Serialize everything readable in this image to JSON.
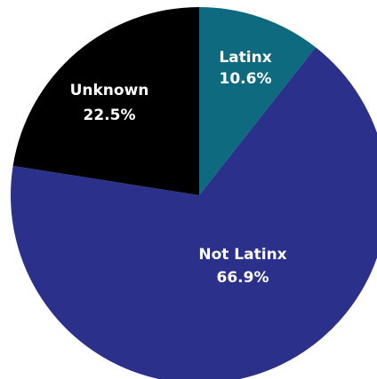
{
  "chart_data": {
    "type": "pie",
    "title": "",
    "start_angle_deg": 0,
    "direction": "clockwise",
    "slices": [
      {
        "label": "Latinx",
        "value_label": "10.6%",
        "value": 10.6,
        "color": "#0e6a7f"
      },
      {
        "label": "Not Latinx",
        "value_label": "66.9%",
        "value": 66.9,
        "color": "#2b318a"
      },
      {
        "label": "Unknown",
        "value_label": "22.5%",
        "value": 22.5,
        "color": "#000000"
      }
    ]
  }
}
